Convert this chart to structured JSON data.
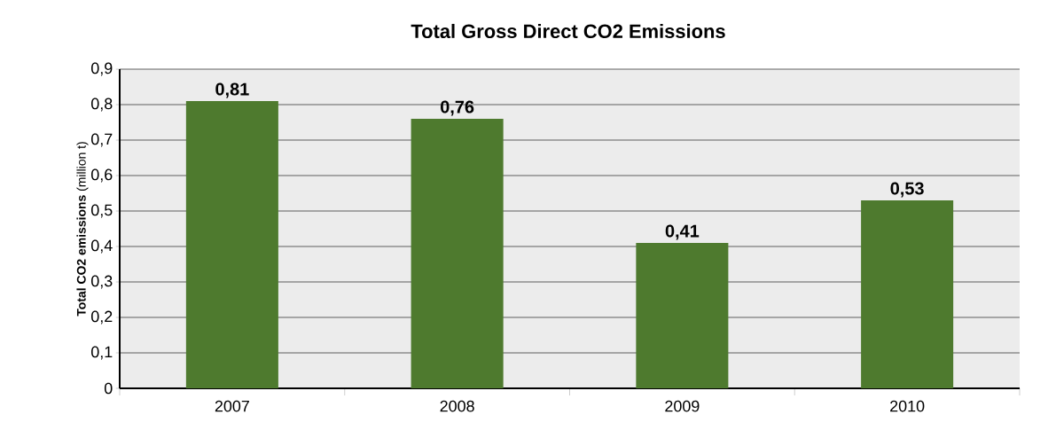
{
  "chart_data": {
    "type": "bar",
    "title": "Total Gross Direct CO2 Emissions",
    "ylabel": "**Total CO2 emissions** (million t)",
    "categories": [
      "2007",
      "2008",
      "2009",
      "2010"
    ],
    "values": [
      0.81,
      0.76,
      0.41,
      0.53
    ],
    "value_labels": [
      "0,81",
      "0,76",
      "0,41",
      "0,53"
    ],
    "color": "#4e7a2e",
    "ylim": [
      0,
      0.9
    ],
    "yticks": [
      0,
      {
        "value": 0.1,
        "label": "0,1"
      },
      {
        "value": 0.2,
        "label": "0,2"
      },
      {
        "value": 0.3,
        "label": "0,3"
      },
      {
        "value": 0.4,
        "label": "0,4"
      },
      {
        "value": 0.5,
        "label": "0,5"
      },
      {
        "value": 0.6,
        "label": "0,6"
      },
      {
        "value": 0.7,
        "label": "0,7"
      },
      {
        "value": 0.8,
        "label": "0,8"
      },
      {
        "value": 0.9,
        "label": "0,9"
      }
    ],
    "grid": "y"
  }
}
